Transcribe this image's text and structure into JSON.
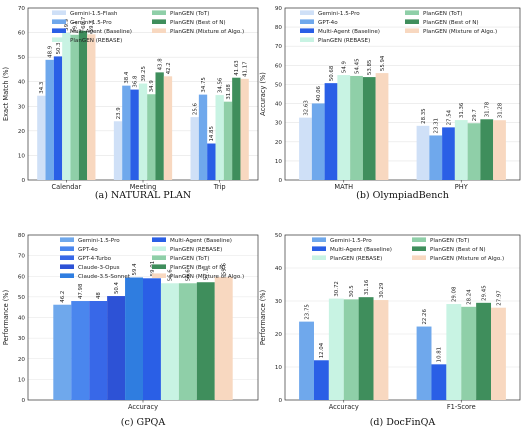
{
  "colors": {
    "gemini_flash": "#cfe0f7",
    "gemini_pro": "#6fa8ec",
    "gpt4o": "#4a86ee",
    "gpt4turbo": "#3868e8",
    "claude_opus": "#2d52d6",
    "claude_sonnet": "#2f7de0",
    "multi_agent": "#2a5fe6",
    "rebase": "#c8f3e3",
    "tot": "#8fcfa8",
    "best_of_n": "#3f8e5c",
    "mixture": "#f8d8c0"
  },
  "chart_data": [
    {
      "type": "bar",
      "caption": "(a) NATURAL PLAN",
      "ylabel": "Exact Match (%)",
      "ylim": [
        0,
        70
      ],
      "yticks": [
        0,
        10,
        20,
        30,
        40,
        50,
        60,
        70
      ],
      "categories": [
        "Calendar",
        "Meeting",
        "Trip"
      ],
      "legend_ncol": 2,
      "legend_order": [
        0,
        1,
        2,
        6,
        3,
        4,
        5
      ],
      "series": [
        {
          "name": "Gemini-1.5-Flash",
          "color_key": "gemini_flash",
          "values": [
            34.3,
            23.9,
            25.6
          ]
        },
        {
          "name": "Gemini-1.5-Pro",
          "color_key": "gemini_pro",
          "values": [
            48.9,
            38.4,
            34.75
          ]
        },
        {
          "name": "Multi-Agent (Baseline)",
          "color_key": "multi_agent",
          "values": [
            50.3,
            36.8,
            14.85
          ]
        },
        {
          "name": "PlanGEN (ToT)",
          "color_key": "tot",
          "values": [
            59.1,
            34.9,
            31.88
          ]
        },
        {
          "name": "PlanGEN (Best of N)",
          "color_key": "best_of_n",
          "values": [
            60.7,
            43.8,
            41.63
          ]
        },
        {
          "name": "PlanGEN (Mixture of Algo.)",
          "color_key": "mixture",
          "values": [
            59.3,
            42.2,
            41.17
          ]
        },
        {
          "name": "PlanGEN (REBASE)",
          "color_key": "rebase",
          "values": [
            59.9,
            39.25,
            34.56
          ]
        }
      ],
      "draw_order": [
        0,
        1,
        2,
        6,
        3,
        4,
        5
      ]
    },
    {
      "type": "bar",
      "caption": "(b) OlympiadBench",
      "ylabel": "Accuracy (%)",
      "ylim": [
        0,
        90
      ],
      "yticks": [
        0,
        10,
        20,
        30,
        40,
        50,
        60,
        70,
        80,
        90
      ],
      "categories": [
        "MATH",
        "PHY"
      ],
      "legend_ncol": 2,
      "legend_order": [
        0,
        1,
        2,
        6,
        3,
        4,
        5
      ],
      "series": [
        {
          "name": "Gemini-1.5-Pro",
          "color_key": "gemini_flash",
          "values": [
            32.63,
            28.35
          ]
        },
        {
          "name": "GPT-4o",
          "color_key": "gemini_pro",
          "values": [
            40.06,
            23.31
          ]
        },
        {
          "name": "Multi-Agent (Baseline)",
          "color_key": "multi_agent",
          "values": [
            50.68,
            27.54
          ]
        },
        {
          "name": "PlanGEN (ToT)",
          "color_key": "tot",
          "values": [
            54.45,
            29.7
          ]
        },
        {
          "name": "PlanGEN (Best of N)",
          "color_key": "best_of_n",
          "values": [
            53.85,
            31.78
          ]
        },
        {
          "name": "PlanGEN (Mixture of Algo.)",
          "color_key": "mixture",
          "values": [
            55.94,
            31.28
          ]
        },
        {
          "name": "PlanGEN (REBASE)",
          "color_key": "rebase",
          "values": [
            54.9,
            31.36
          ]
        }
      ],
      "draw_order": [
        0,
        1,
        2,
        6,
        3,
        4,
        5
      ]
    },
    {
      "type": "bar",
      "caption": "(c) GPQA",
      "ylabel": "Performance (%)",
      "ylim": [
        0,
        80
      ],
      "yticks": [
        0,
        10,
        20,
        30,
        40,
        50,
        60,
        70,
        80
      ],
      "categories": [
        "Accuracy"
      ],
      "legend_ncol": 2,
      "legend_order": [
        0,
        1,
        2,
        3,
        4,
        5,
        6,
        7,
        8,
        9
      ],
      "series": [
        {
          "name": "Gemini-1.5-Pro",
          "color_key": "gemini_pro",
          "values": [
            46.2
          ]
        },
        {
          "name": "GPT-4o",
          "color_key": "gpt4o",
          "values": [
            47.98
          ]
        },
        {
          "name": "GPT-4-Turbo",
          "color_key": "gpt4turbo",
          "values": [
            48
          ]
        },
        {
          "name": "Claude-3-Opus",
          "color_key": "claude_opus",
          "values": [
            50.4
          ]
        },
        {
          "name": "Claude-3.5-Sonnet",
          "color_key": "claude_sonnet",
          "values": [
            59.4
          ]
        },
        {
          "name": "Multi-Agent (Baseline)",
          "color_key": "multi_agent",
          "values": [
            59.01
          ]
        },
        {
          "name": "PlanGEN (REBASE)",
          "color_key": "rebase",
          "values": [
            56.6
          ]
        },
        {
          "name": "PlanGEN (ToT)",
          "color_key": "tot",
          "values": [
            56.6
          ]
        },
        {
          "name": "PlanGEN (Best of N)",
          "color_key": "best_of_n",
          "values": [
            57.1
          ]
        },
        {
          "name": "PlanGEN (Mixture of Algo.)",
          "color_key": "mixture",
          "values": [
            59.6
          ]
        }
      ],
      "draw_order": [
        0,
        1,
        2,
        3,
        4,
        5,
        6,
        7,
        8,
        9
      ]
    },
    {
      "type": "bar",
      "caption": "(d) DocFinQA",
      "ylabel": "Performance (%)",
      "ylim": [
        0,
        50
      ],
      "yticks": [
        0,
        10,
        20,
        30,
        40,
        50
      ],
      "categories": [
        "Accuracy",
        "F1-Score"
      ],
      "legend_ncol": 2,
      "legend_order": [
        0,
        1,
        2,
        3,
        4,
        5
      ],
      "series": [
        {
          "name": "Gemini-1.5-Pro",
          "color_key": "gemini_pro",
          "values": [
            23.75,
            22.26
          ]
        },
        {
          "name": "Multi-Agent (Baseline)",
          "color_key": "multi_agent",
          "values": [
            12.04,
            10.81
          ]
        },
        {
          "name": "PlanGEN (REBASE)",
          "color_key": "rebase",
          "values": [
            30.72,
            29.08
          ]
        },
        {
          "name": "PlanGEN (ToT)",
          "color_key": "tot",
          "values": [
            30.5,
            28.24
          ]
        },
        {
          "name": "PlanGEN (Best of N)",
          "color_key": "best_of_n",
          "values": [
            31.16,
            29.45
          ]
        },
        {
          "name": "PlanGEN (Mixture of Algo.)",
          "color_key": "mixture",
          "values": [
            30.29,
            27.97
          ]
        }
      ],
      "draw_order": [
        0,
        1,
        2,
        3,
        4,
        5
      ]
    }
  ]
}
